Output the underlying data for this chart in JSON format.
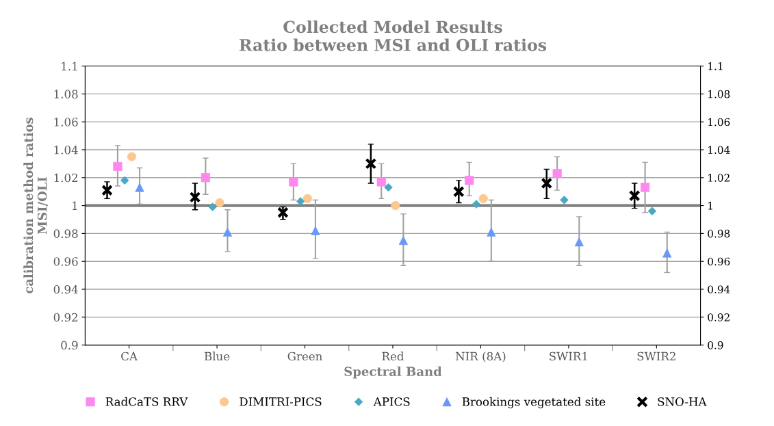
{
  "chart_data": {
    "type": "scatter",
    "title": "Collected Model Results\nRatio between MSI and OLI ratios",
    "xlabel": "Spectral Band",
    "ylabel": "calibration method ratios\nMSI/OLI",
    "categories": [
      "CA",
      "Blue",
      "Green",
      "Red",
      "NIR (8A)",
      "SWIR1",
      "SWIR2"
    ],
    "series": [
      {
        "name": "RadCaTS RRV",
        "color": "#ff88f0",
        "marker": "square",
        "values": [
          1.028,
          1.02,
          1.017,
          1.017,
          1.018,
          1.023,
          1.013
        ],
        "errors": [
          [
            1.014,
            1.043
          ],
          [
            1.008,
            1.034
          ],
          [
            1.004,
            1.03
          ],
          [
            1.005,
            1.03
          ],
          [
            1.007,
            1.031
          ],
          [
            1.011,
            1.035
          ],
          [
            0.995,
            1.031
          ]
        ]
      },
      {
        "name": "DIMITRI-PICS",
        "color": "#fcc890",
        "marker": "circle",
        "values": [
          1.035,
          1.002,
          1.005,
          1.0,
          1.005,
          null,
          null
        ]
      },
      {
        "name": "APICS",
        "color": "#4aa8c4",
        "marker": "diamond",
        "values": [
          1.018,
          0.999,
          1.003,
          1.013,
          1.001,
          1.004,
          0.996
        ]
      },
      {
        "name": "Brookings vegetated site",
        "color": "#6a98f8",
        "marker": "triangle",
        "values": [
          1.013,
          0.981,
          0.982,
          0.975,
          0.981,
          0.974,
          0.966
        ],
        "errors": [
          [
            1.001,
            1.027
          ],
          [
            0.967,
            0.997
          ],
          [
            0.962,
            1.004
          ],
          [
            0.957,
            0.994
          ],
          [
            0.96,
            1.004
          ],
          [
            0.957,
            0.992
          ],
          [
            0.952,
            0.981
          ]
        ]
      },
      {
        "name": "SNO-HA",
        "color": "#000000",
        "marker": "cross",
        "values": [
          1.011,
          1.006,
          0.995,
          1.03,
          1.01,
          1.016,
          1.007
        ],
        "errors": [
          [
            1.005,
            1.017
          ],
          [
            0.997,
            1.016
          ],
          [
            0.99,
            0.999
          ],
          [
            1.016,
            1.044
          ],
          [
            1.002,
            1.018
          ],
          [
            1.005,
            1.026
          ],
          [
            0.998,
            1.016
          ]
        ]
      }
    ],
    "ylim": [
      0.9,
      1.1
    ],
    "yticks": [
      0.9,
      0.92,
      0.94,
      0.96,
      0.98,
      1,
      1.02,
      1.04,
      1.06,
      1.08,
      1.1
    ],
    "y2lim": [
      0.9,
      1.1
    ],
    "y2ticks": [
      0.9,
      0.92,
      0.94,
      0.96,
      0.98,
      1,
      1.02,
      1.04,
      1.06,
      1.08,
      1.1
    ],
    "ref_lines": [
      {
        "axis": "y",
        "value": 1,
        "color": "#808080"
      }
    ],
    "grid": "y",
    "legend": "bottom"
  }
}
